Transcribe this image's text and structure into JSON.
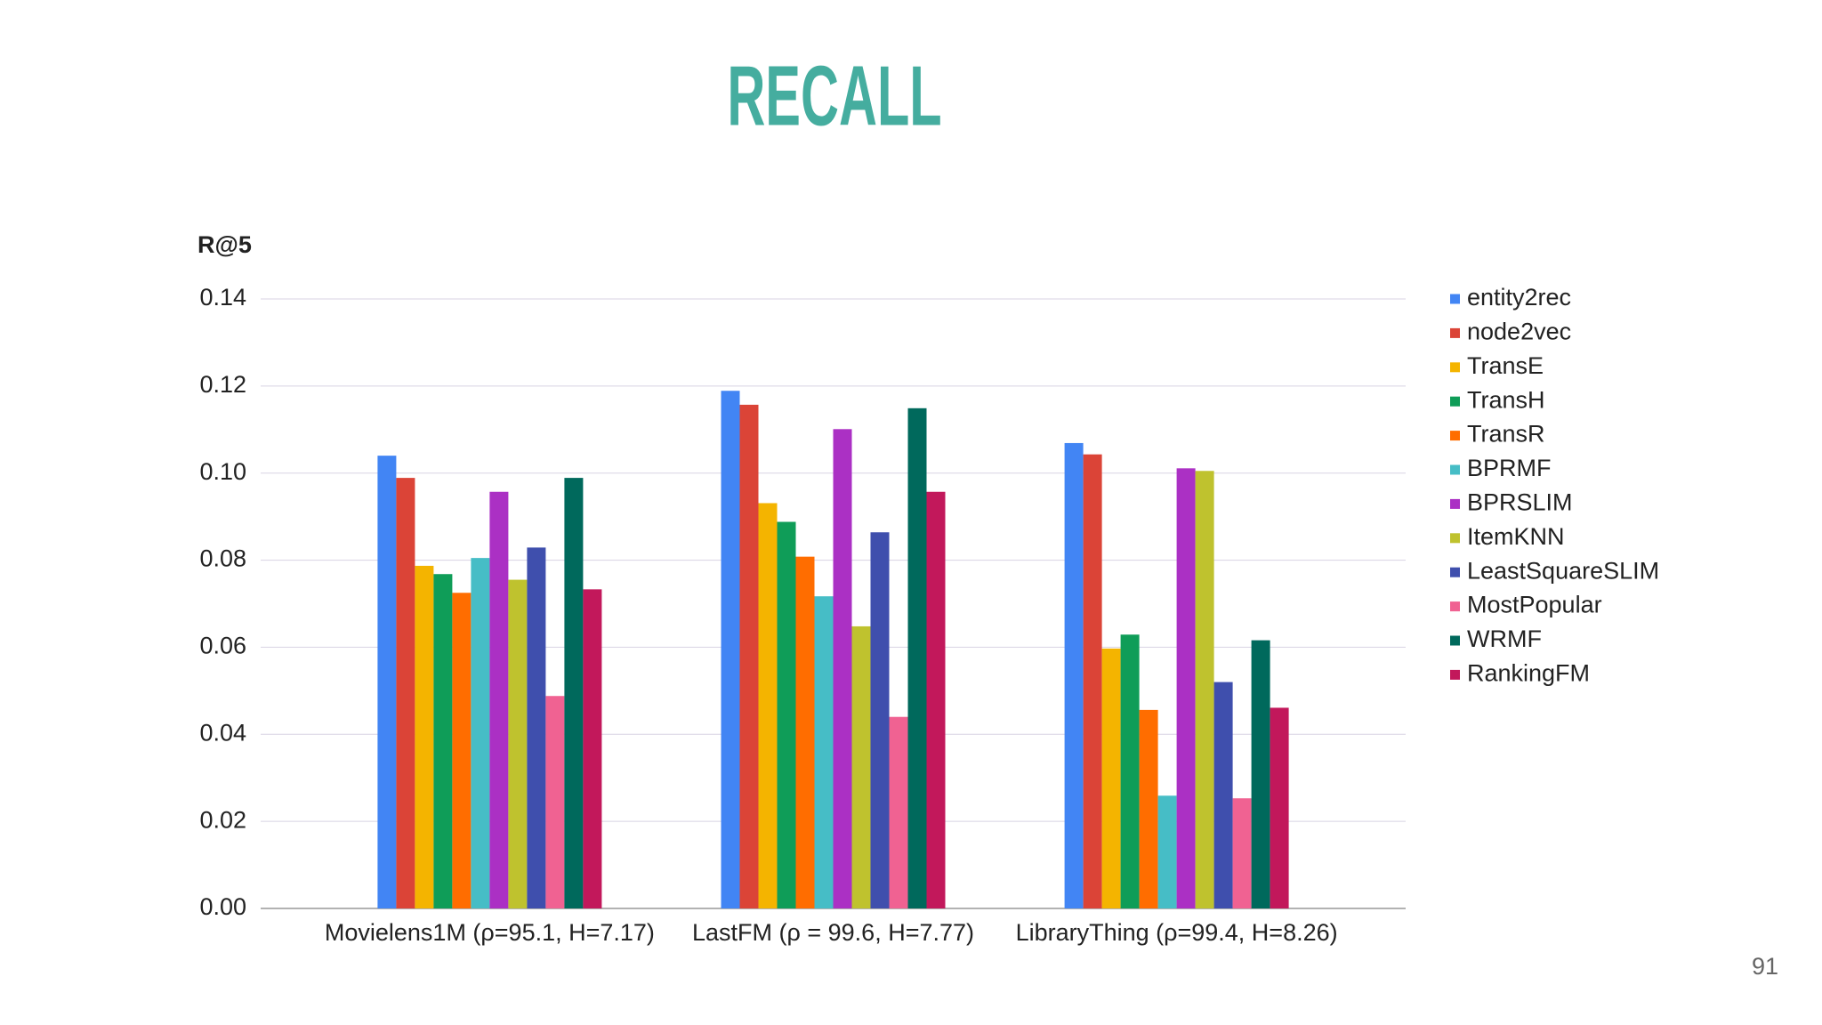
{
  "chart_data": {
    "type": "bar",
    "title": "RECALL",
    "y_label": "R@5",
    "categories": [
      "Movielens1M (ρ=95.1, H=7.17)",
      "LastFM (ρ = 99.6, H=7.77)",
      "LibraryThing (ρ=99.4, H=8.26)"
    ],
    "series": [
      {
        "name": "entity2rec",
        "color": "#4285f4",
        "values": [
          0.104,
          0.1189,
          0.1069
        ]
      },
      {
        "name": "node2vec",
        "color": "#db4437",
        "values": [
          0.0989,
          0.1157,
          0.1043
        ]
      },
      {
        "name": "TransE",
        "color": "#f4b400",
        "values": [
          0.0787,
          0.0931,
          0.0597
        ]
      },
      {
        "name": "TransH",
        "color": "#0f9d58",
        "values": [
          0.0768,
          0.0888,
          0.0629
        ]
      },
      {
        "name": "TransR",
        "color": "#ff6d00",
        "values": [
          0.0725,
          0.0808,
          0.0456
        ]
      },
      {
        "name": "BPRMF",
        "color": "#46bdc6",
        "values": [
          0.0805,
          0.0717,
          0.0259
        ]
      },
      {
        "name": "BPRSLIM",
        "color": "#ab30c4",
        "values": [
          0.0957,
          0.1101,
          0.1011
        ]
      },
      {
        "name": "ItemKNN",
        "color": "#bfc22e",
        "values": [
          0.0755,
          0.0648,
          0.1005
        ]
      },
      {
        "name": "LeastSquareSLIM",
        "color": "#3f4fad",
        "values": [
          0.0829,
          0.0864,
          0.052
        ]
      },
      {
        "name": "MostPopular",
        "color": "#f06292",
        "values": [
          0.0488,
          0.044,
          0.0253
        ]
      },
      {
        "name": "WRMF",
        "color": "#00695c",
        "values": [
          0.0989,
          0.1149,
          0.0616
        ]
      },
      {
        "name": "RankingFM",
        "color": "#c2185b",
        "values": [
          0.0733,
          0.0957,
          0.0461
        ]
      }
    ],
    "ylim": [
      0,
      0.14
    ],
    "yticks": [
      {
        "value": 0,
        "label": "0.00"
      },
      {
        "value": 0.02,
        "label": "0.02"
      },
      {
        "value": 0.04,
        "label": "0.04"
      },
      {
        "value": 0.06,
        "label": "0.06"
      },
      {
        "value": 0.08,
        "label": "0.08"
      },
      {
        "value": 0.1,
        "label": "0.10"
      },
      {
        "value": 0.12,
        "label": "0.12"
      },
      {
        "value": 0.14,
        "label": "0.14"
      }
    ],
    "grid": true,
    "legend": "right"
  },
  "page_number": "91"
}
